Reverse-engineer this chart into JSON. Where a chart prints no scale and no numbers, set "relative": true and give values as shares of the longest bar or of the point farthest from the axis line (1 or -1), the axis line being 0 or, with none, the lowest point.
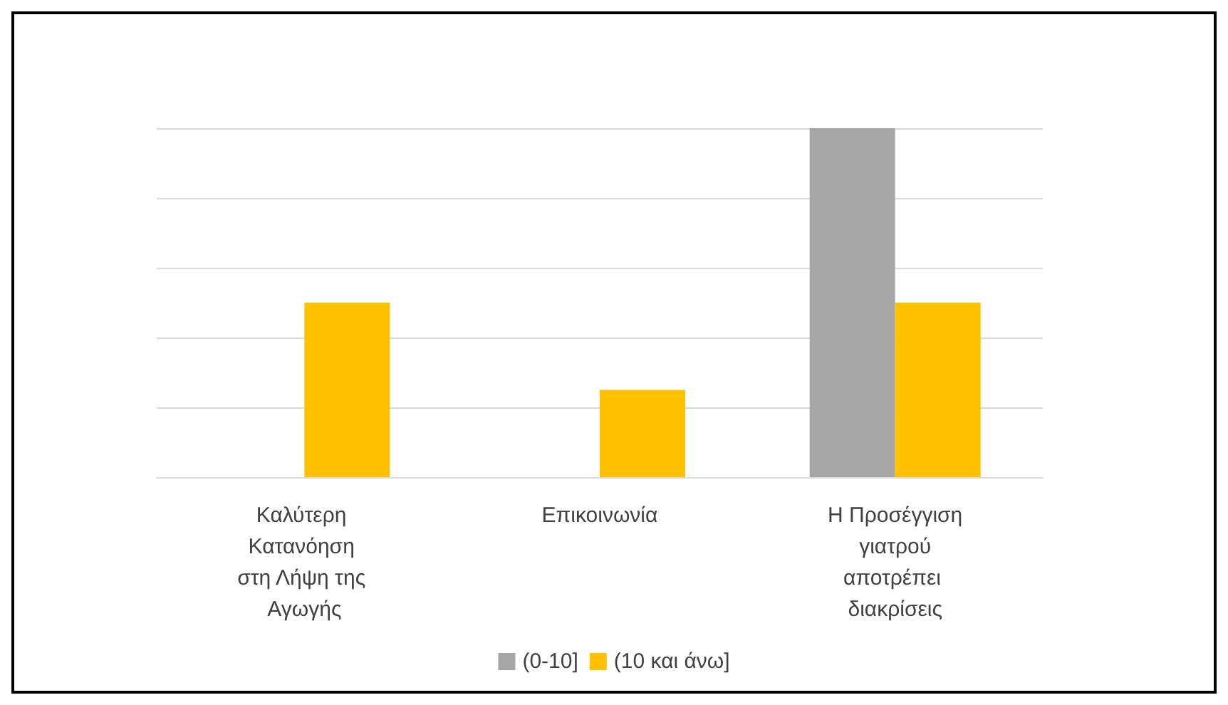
{
  "chart_data": {
    "type": "bar",
    "relative": true,
    "categories": [
      "Καλύτερη Κατανόηση στη Λήψη της Αγωγής",
      "Επικοινωνία",
      "Η Προσέγγιση γιατρού αποτρέπει διακρίσεις"
    ],
    "series": [
      {
        "name": "(0-10]",
        "color": "#a6a6a6",
        "values": [
          0,
          0,
          1
        ]
      },
      {
        "name": "(10 και άνω]",
        "color": "#ffc000",
        "values": [
          0.5,
          0.25,
          0.5
        ]
      }
    ],
    "grid": "y",
    "legend": "bottom"
  }
}
